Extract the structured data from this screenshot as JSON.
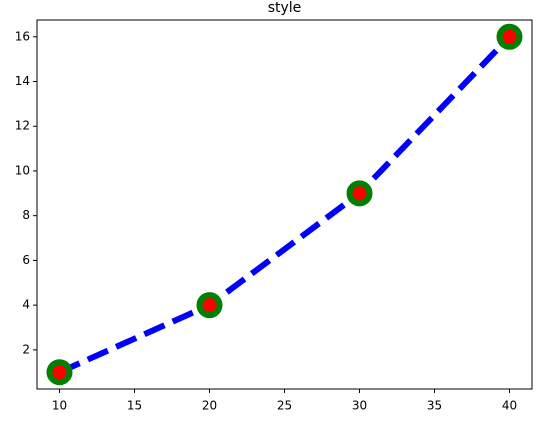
{
  "chart_data": {
    "type": "line",
    "title": "style",
    "x": [
      10,
      20,
      30,
      40
    ],
    "series": [
      {
        "values": [
          1,
          4,
          9,
          16
        ],
        "color": "blue",
        "linestyle": "dashed",
        "markeredgecolor": "green",
        "markerfacecolor": "red"
      }
    ],
    "xlim": [
      8.5,
      41.5
    ],
    "xticks": [
      10,
      15,
      20,
      25,
      30,
      35,
      40
    ],
    "ylim": [
      0.25,
      16.75
    ],
    "yticks": [
      2,
      4,
      6,
      8,
      10,
      12,
      14,
      16
    ],
    "grid": false
  }
}
